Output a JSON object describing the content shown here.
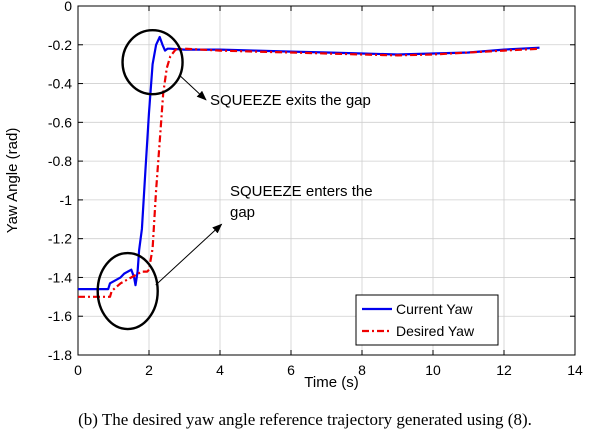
{
  "caption": "(b) The desired yaw angle reference trajectory generated using (8).",
  "chart_data": {
    "type": "line",
    "title": "",
    "xlabel": "Time (s)",
    "ylabel": "Yaw Angle (rad)",
    "xlim": [
      0,
      14
    ],
    "ylim": [
      -1.8,
      0
    ],
    "xticks": [
      0,
      2,
      4,
      6,
      8,
      10,
      12,
      14
    ],
    "xtick_labels": [
      "0",
      "2",
      "4",
      "6",
      "8",
      "10",
      "12",
      "14"
    ],
    "yticks": [
      0,
      -0.2,
      -0.4,
      -0.6,
      -0.8,
      -1,
      -1.2,
      -1.4,
      -1.6,
      -1.8
    ],
    "ytick_labels": [
      "0",
      "-0.2",
      "-0.4",
      "-0.6",
      "-0.8",
      "-1",
      "-1.2",
      "-1.4",
      "-1.6",
      "-1.8"
    ],
    "grid": true,
    "legend_position": "bottom-right",
    "series": [
      {
        "name": "Current Yaw",
        "color": "#0000ee",
        "style": "solid",
        "points": [
          [
            0,
            -1.46
          ],
          [
            0.85,
            -1.46
          ],
          [
            0.9,
            -1.43
          ],
          [
            1.2,
            -1.4
          ],
          [
            1.3,
            -1.38
          ],
          [
            1.5,
            -1.36
          ],
          [
            1.58,
            -1.4
          ],
          [
            1.62,
            -1.44
          ],
          [
            1.68,
            -1.37
          ],
          [
            1.72,
            -1.26
          ],
          [
            1.8,
            -1.15
          ],
          [
            1.9,
            -0.85
          ],
          [
            2.0,
            -0.55
          ],
          [
            2.1,
            -0.3
          ],
          [
            2.2,
            -0.2
          ],
          [
            2.3,
            -0.16
          ],
          [
            2.38,
            -0.2
          ],
          [
            2.45,
            -0.23
          ],
          [
            2.52,
            -0.22
          ],
          [
            2.6,
            -0.22
          ],
          [
            3.0,
            -0.225
          ],
          [
            4.0,
            -0.225
          ],
          [
            5.0,
            -0.23
          ],
          [
            6.0,
            -0.235
          ],
          [
            7.0,
            -0.24
          ],
          [
            8.0,
            -0.245
          ],
          [
            9.0,
            -0.25
          ],
          [
            10.0,
            -0.245
          ],
          [
            11.0,
            -0.24
          ],
          [
            12.0,
            -0.225
          ],
          [
            13.0,
            -0.215
          ]
        ]
      },
      {
        "name": "Desired Yaw",
        "color": "#ee0000",
        "style": "dashdot",
        "points": [
          [
            0,
            -1.5
          ],
          [
            0.9,
            -1.5
          ],
          [
            0.95,
            -1.47
          ],
          [
            1.2,
            -1.43
          ],
          [
            1.4,
            -1.41
          ],
          [
            1.6,
            -1.39
          ],
          [
            1.8,
            -1.37
          ],
          [
            1.95,
            -1.37
          ],
          [
            2.0,
            -1.36
          ],
          [
            2.1,
            -1.25
          ],
          [
            2.2,
            -0.95
          ],
          [
            2.3,
            -0.7
          ],
          [
            2.4,
            -0.45
          ],
          [
            2.5,
            -0.32
          ],
          [
            2.6,
            -0.26
          ],
          [
            2.75,
            -0.225
          ],
          [
            3.0,
            -0.22
          ],
          [
            4.0,
            -0.23
          ],
          [
            5.0,
            -0.235
          ],
          [
            6.0,
            -0.24
          ],
          [
            7.0,
            -0.245
          ],
          [
            8.0,
            -0.25
          ],
          [
            9.0,
            -0.255
          ],
          [
            10.0,
            -0.25
          ],
          [
            11.0,
            -0.24
          ],
          [
            12.0,
            -0.23
          ],
          [
            13.0,
            -0.22
          ]
        ]
      }
    ],
    "annotations": [
      {
        "text": "SQUEEZE exits the gap",
        "lines": [
          "SQUEEZE exits the gap"
        ],
        "circle_center": [
          2.1,
          -0.29
        ],
        "arrow_tip": [
          2.9,
          -0.35
        ]
      },
      {
        "text": "SQUEEZE enters the gap",
        "lines": [
          "SQUEEZE enters the",
          "gap"
        ],
        "circle_center": [
          1.4,
          -1.47
        ],
        "arrow_tip": [
          4.1,
          -1.1
        ]
      }
    ]
  }
}
